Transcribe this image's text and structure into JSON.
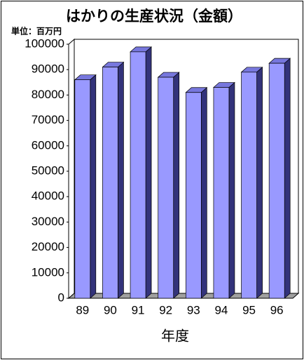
{
  "chart_data": {
    "type": "bar3d",
    "title": "はかりの生産状況（金額）",
    "unit_label": "単位：百万円",
    "x_label": "年度",
    "categories": [
      "89",
      "90",
      "91",
      "92",
      "93",
      "94",
      "95",
      "96"
    ],
    "values": [
      86000,
      91000,
      97000,
      87000,
      81000,
      83000,
      89000,
      92500
    ],
    "color": "#9999ff",
    "ylim": [
      0,
      100000
    ],
    "yticks": [
      0,
      10000,
      20000,
      30000,
      40000,
      50000,
      60000,
      70000,
      80000,
      90000,
      100000
    ]
  }
}
